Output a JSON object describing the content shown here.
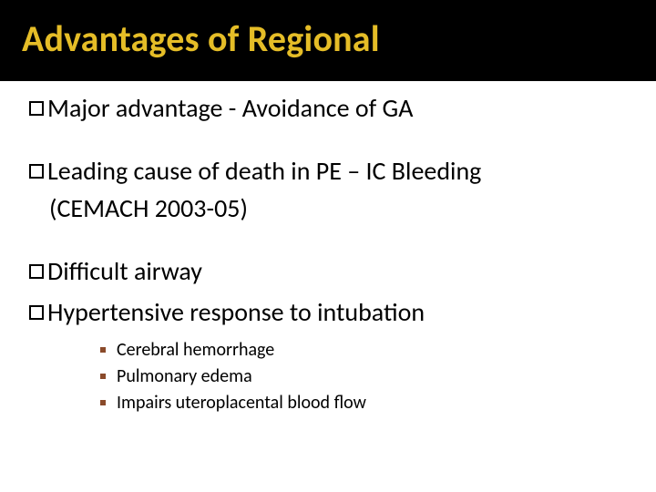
{
  "title": "Advantages of Regional",
  "bullets": [
    {
      "text": "Major advantage - Avoidance of GA"
    },
    {
      "text": "Leading cause of death in PE – IC Bleeding",
      "continuation": "(CEMACH 2003-05)"
    },
    {
      "text": "Difficult airway"
    },
    {
      "text": "Hypertensive response to intubation"
    }
  ],
  "sub_bullets": [
    "Cerebral hemorrhage",
    "Pulmonary edema",
    "Impairs  uteroplacental blood flow"
  ],
  "colors": {
    "title_bg": "#000000",
    "title_fg": "#e5bd27",
    "body_bg": "#ffffff",
    "text": "#000000",
    "sub_marker": "#8a4a2a"
  },
  "fonts": {
    "title_size_pt": 30,
    "bullet_size_pt": 21,
    "sub_size_pt": 15
  }
}
